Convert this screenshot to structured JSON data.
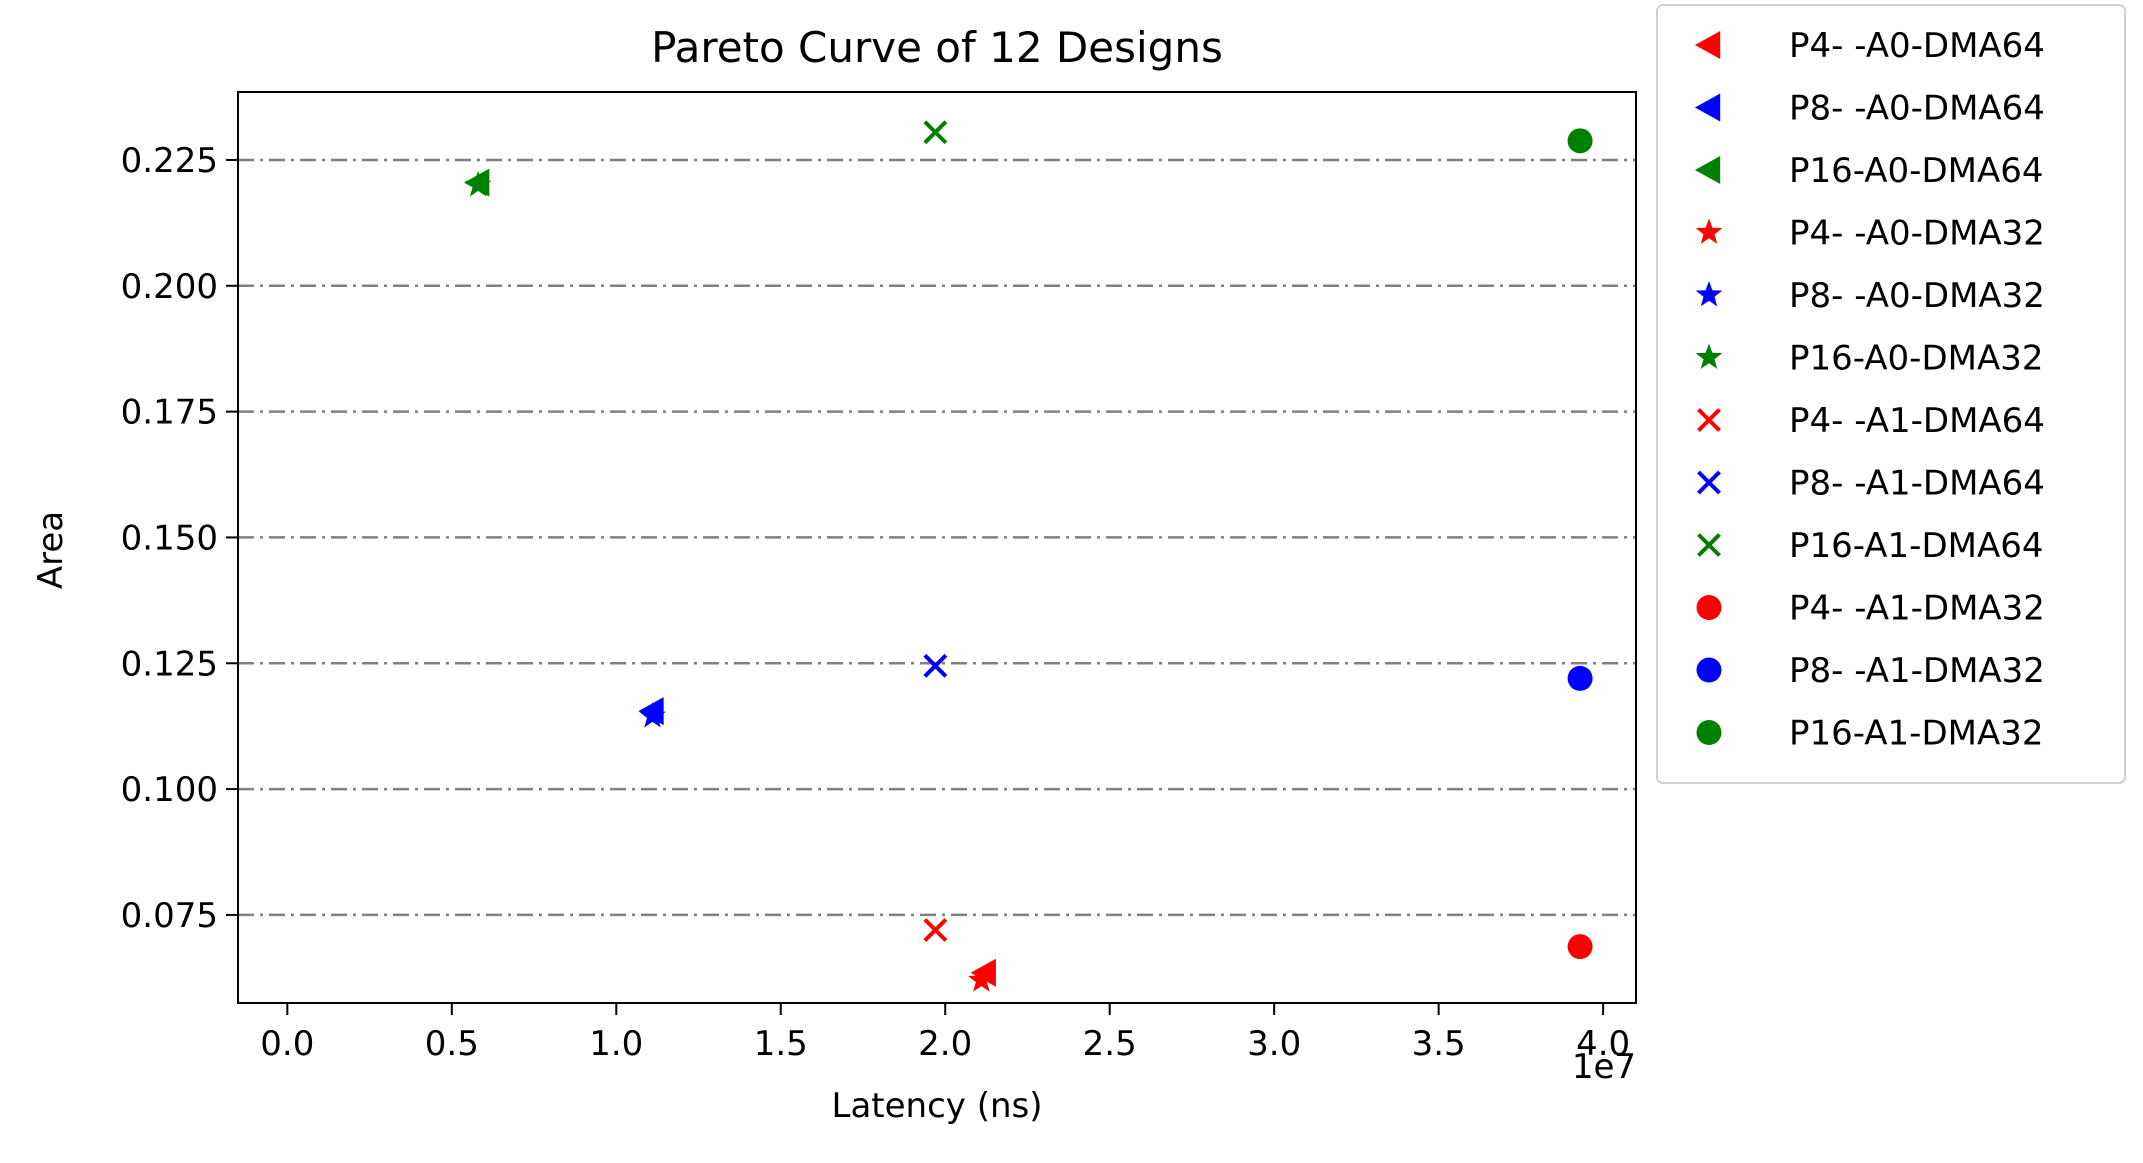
{
  "chart_data": {
    "type": "scatter",
    "title": "Pareto Curve of 12 Designs",
    "xlabel": "Latency (ns)",
    "ylabel": "Area",
    "x_offset_label": "1e7",
    "xlim": [
      -0.15,
      4.1
    ],
    "ylim": [
      0.0575,
      0.2385
    ],
    "xticks": [
      0.0,
      0.5,
      1.0,
      1.5,
      2.0,
      2.5,
      3.0,
      3.5,
      4.0
    ],
    "xtick_labels": [
      "0.0",
      "0.5",
      "1.0",
      "1.5",
      "2.0",
      "2.5",
      "3.0",
      "3.5",
      "4.0"
    ],
    "yticks": [
      0.075,
      0.1,
      0.125,
      0.15,
      0.175,
      0.2,
      0.225
    ],
    "ytick_labels": [
      "0.075",
      "0.100",
      "0.125",
      "0.150",
      "0.175",
      "0.200",
      "0.225"
    ],
    "grid": "horizontal dash-dot",
    "legend_position": "outside right, top",
    "series": [
      {
        "name": "P4- -A0-DMA64",
        "marker": "triangle-left",
        "color": "#ff0000",
        "points": [
          [
            2.12,
            0.0635
          ]
        ]
      },
      {
        "name": "P8- -A0-DMA64",
        "marker": "triangle-left",
        "color": "#0000ff",
        "points": [
          [
            1.11,
            0.1155
          ]
        ]
      },
      {
        "name": "P16-A0-DMA64",
        "marker": "triangle-left",
        "color": "#008000",
        "points": [
          [
            0.58,
            0.2205
          ]
        ]
      },
      {
        "name": "P4- -A0-DMA32",
        "marker": "star",
        "color": "#ff0000",
        "points": [
          [
            2.11,
            0.062
          ]
        ]
      },
      {
        "name": "P8- -A0-DMA32",
        "marker": "star",
        "color": "#0000ff",
        "points": [
          [
            1.11,
            0.1145
          ]
        ]
      },
      {
        "name": "P16-A0-DMA32",
        "marker": "star",
        "color": "#008000",
        "points": [
          [
            0.58,
            0.22
          ]
        ]
      },
      {
        "name": "P4- -A1-DMA64",
        "marker": "x",
        "color": "#ff0000",
        "points": [
          [
            1.97,
            0.072
          ]
        ]
      },
      {
        "name": "P8- -A1-DMA64",
        "marker": "x",
        "color": "#0000ff",
        "points": [
          [
            1.97,
            0.1245
          ]
        ]
      },
      {
        "name": "P16-A1-DMA64",
        "marker": "x",
        "color": "#008000",
        "points": [
          [
            1.97,
            0.2305
          ]
        ]
      },
      {
        "name": "P4- -A1-DMA32",
        "marker": "circle",
        "color": "#ff0000",
        "points": [
          [
            3.93,
            0.0687
          ]
        ]
      },
      {
        "name": "P8- -A1-DMA32",
        "marker": "circle",
        "color": "#0000ff",
        "points": [
          [
            3.93,
            0.122
          ]
        ]
      },
      {
        "name": "P16-A1-DMA32",
        "marker": "circle",
        "color": "#008000",
        "points": [
          [
            3.93,
            0.2288
          ]
        ]
      }
    ]
  }
}
